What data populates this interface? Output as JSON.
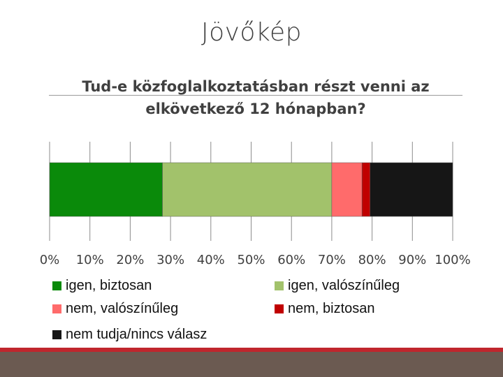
{
  "slide": {
    "title": "Jövőkép"
  },
  "chart_data": {
    "type": "bar",
    "orientation": "horizontal",
    "stacked": true,
    "title": "Tud-e közfoglalkoztatásban részt venni az elkövetkező 12 hónapban?",
    "xlim": [
      0,
      100
    ],
    "x_ticks": [
      "0%",
      "10%",
      "20%",
      "30%",
      "40%",
      "50%",
      "60%",
      "70%",
      "80%",
      "90%",
      "100%"
    ],
    "grid": true,
    "legend_position": "bottom",
    "series": [
      {
        "name": "igen, biztosan",
        "value": 28,
        "color": "#0a8a0a"
      },
      {
        "name": "igen, valószínűleg",
        "value": 42,
        "color": "#a2c26b"
      },
      {
        "name": "nem, valószínűleg",
        "value": 7.5,
        "color": "#ff6b6b"
      },
      {
        "name": "nem, biztosan",
        "value": 2,
        "color": "#c00000"
      },
      {
        "name": "nem tudja/nincs válasz",
        "value": 20.5,
        "color": "#161616"
      }
    ]
  }
}
